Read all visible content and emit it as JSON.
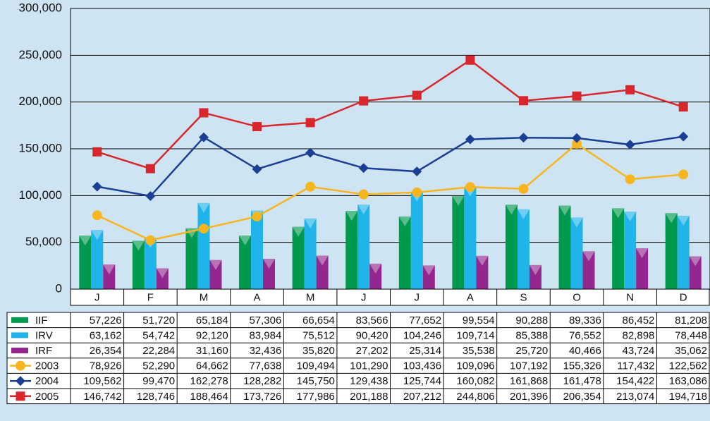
{
  "chart_data": {
    "type": "bar",
    "categories": [
      "J",
      "F",
      "M",
      "A",
      "M",
      "J",
      "J",
      "A",
      "S",
      "O",
      "N",
      "D"
    ],
    "ylim": [
      0,
      300000
    ],
    "yticks": [
      0,
      {
        "value": 50000,
        "label": "50,000"
      },
      {
        "value": 100000,
        "label": "100,000"
      },
      {
        "value": 150000,
        "label": "150,000"
      },
      {
        "value": 200000,
        "label": "200,000"
      },
      {
        "value": 250000,
        "label": "250,000"
      },
      {
        "value": 300000,
        "label": "300,000"
      }
    ],
    "grid": true,
    "series": [
      {
        "name": "IIF",
        "type": "bar",
        "color": "#009a4e",
        "values": [
          57226,
          51720,
          65184,
          57306,
          66654,
          83566,
          77652,
          99554,
          90288,
          89336,
          86452,
          81208
        ],
        "value_labels": [
          "57,226",
          "51,720",
          "65,184",
          "57,306",
          "66,654",
          "83,566",
          "77,652",
          "99,554",
          "90,288",
          "89,336",
          "86,452",
          "81,208"
        ]
      },
      {
        "name": "IRV",
        "type": "bar",
        "color": "#1fb4ea",
        "values": [
          63162,
          54742,
          92120,
          83984,
          75512,
          90420,
          104246,
          109714,
          85388,
          76552,
          82898,
          78448
        ],
        "value_labels": [
          "63,162",
          "54,742",
          "92,120",
          "83,984",
          "75,512",
          "90,420",
          "104,246",
          "109,714",
          "85,388",
          "76,552",
          "82,898",
          "78,448"
        ]
      },
      {
        "name": "IRF",
        "type": "bar",
        "color": "#93278f",
        "values": [
          26354,
          22284,
          31160,
          32436,
          35820,
          27202,
          25314,
          35538,
          25720,
          40466,
          43724,
          35062
        ],
        "value_labels": [
          "26,354",
          "22,284",
          "31,160",
          "32,436",
          "35,820",
          "27,202",
          "25,314",
          "35,538",
          "25,720",
          "40,466",
          "43,724",
          "35,062"
        ]
      },
      {
        "name": "2003",
        "type": "line",
        "marker": "circle",
        "color": "#f7b520",
        "values": [
          78926,
          52290,
          64662,
          77638,
          109494,
          101290,
          103436,
          109096,
          107192,
          155326,
          117432,
          122562
        ],
        "value_labels": [
          "78,926",
          "52,290",
          "64,662",
          "77,638",
          "109,494",
          "101,290",
          "103,436",
          "109,096",
          "107,192",
          "155,326",
          "117,432",
          "122,562"
        ]
      },
      {
        "name": "2004",
        "type": "line",
        "marker": "diamond",
        "color": "#1b3f95",
        "values": [
          109562,
          99470,
          162278,
          128282,
          145750,
          129438,
          125744,
          160082,
          161868,
          161478,
          154422,
          163086
        ],
        "value_labels": [
          "109,562",
          "99,470",
          "162,278",
          "128,282",
          "145,750",
          "129,438",
          "125,744",
          "160,082",
          "161,868",
          "161,478",
          "154,422",
          "163,086"
        ]
      },
      {
        "name": "2005",
        "type": "line",
        "marker": "square",
        "color": "#d7262c",
        "values": [
          146742,
          128746,
          188464,
          173726,
          177986,
          201188,
          207212,
          244806,
          201396,
          206354,
          213074,
          194718
        ],
        "value_labels": [
          "146,742",
          "128,746",
          "188,464",
          "173,726",
          "177,986",
          "201,188",
          "207,212",
          "244,806",
          "201,396",
          "206,354",
          "213,074",
          "194,718"
        ]
      }
    ]
  }
}
